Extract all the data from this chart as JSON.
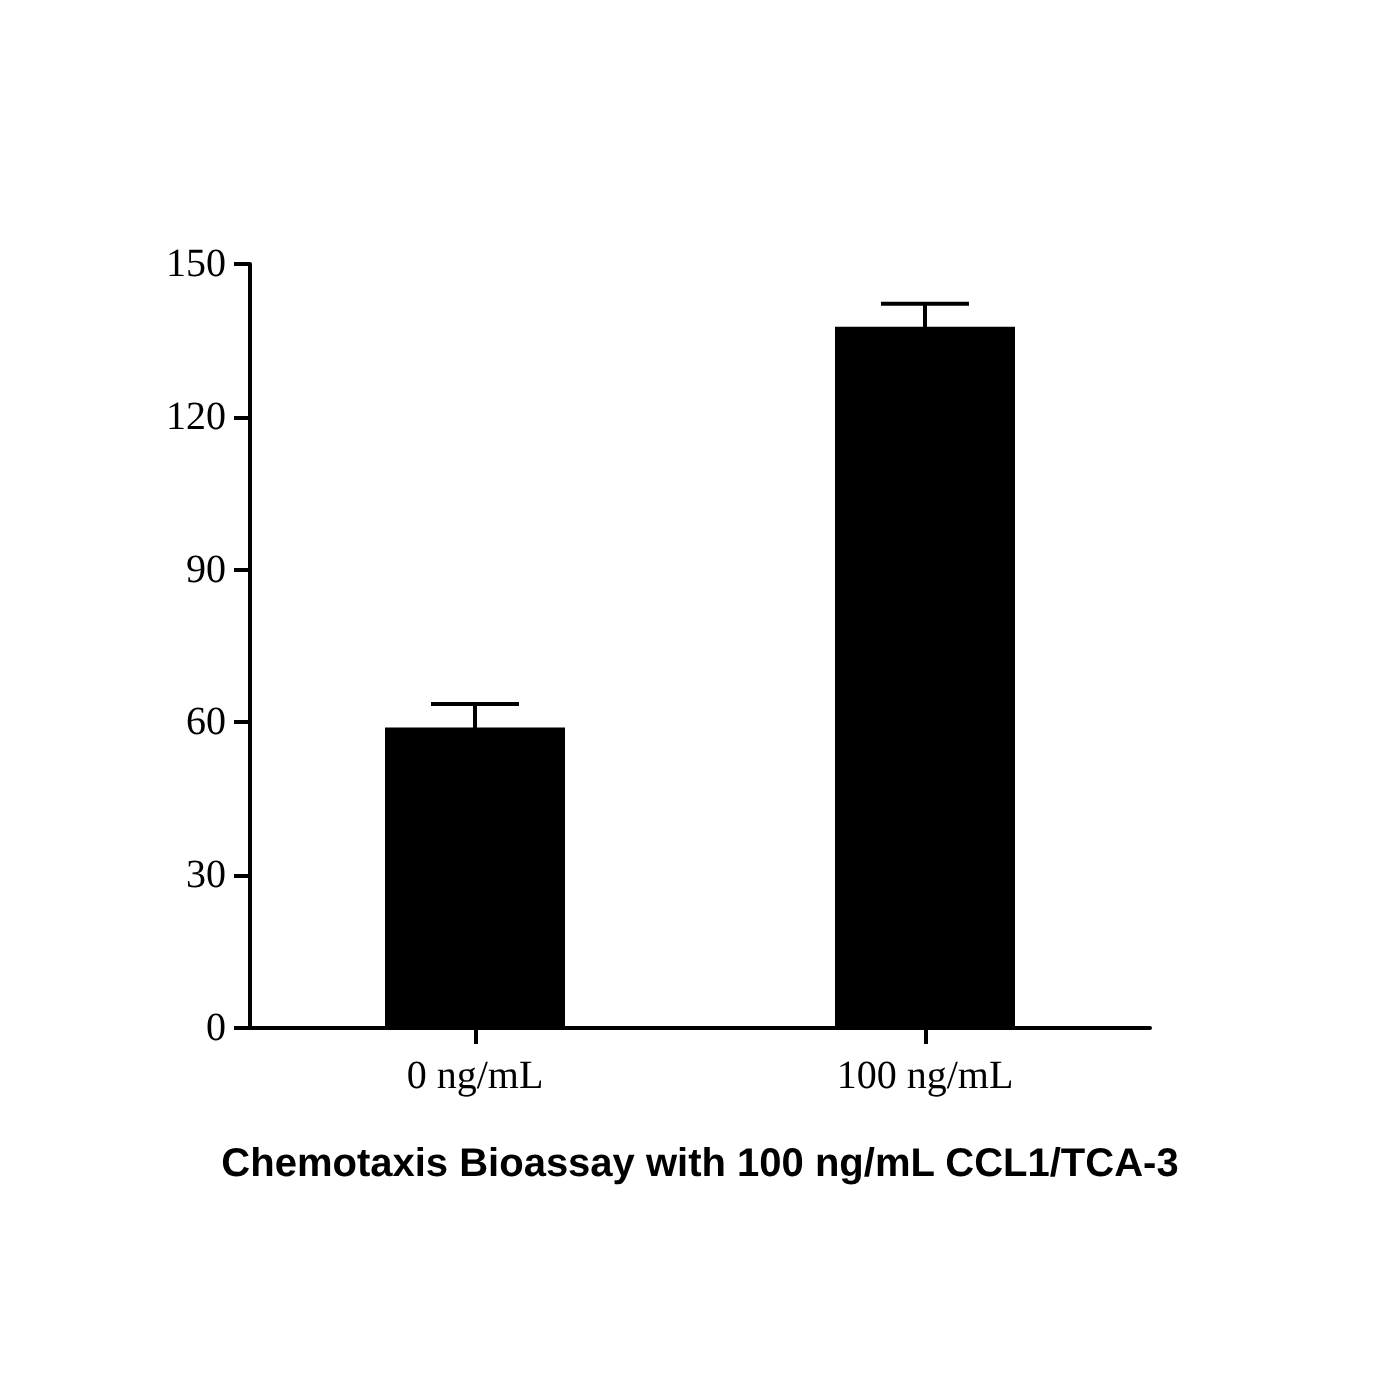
{
  "chart_data": {
    "type": "bar",
    "xlabel": "Chemotaxis Bioassay with 100 ng/mL CCL1/TCA-3",
    "categories": [
      "0 ng/mL",
      "100 ng/mL"
    ],
    "values": [
      59,
      137.7
    ],
    "errors": [
      4.6,
      4.5
    ],
    "color": "#000000",
    "ylim": [
      0,
      150
    ],
    "yticks": [
      0,
      30,
      60,
      90,
      120,
      150
    ],
    "grid": false
  }
}
